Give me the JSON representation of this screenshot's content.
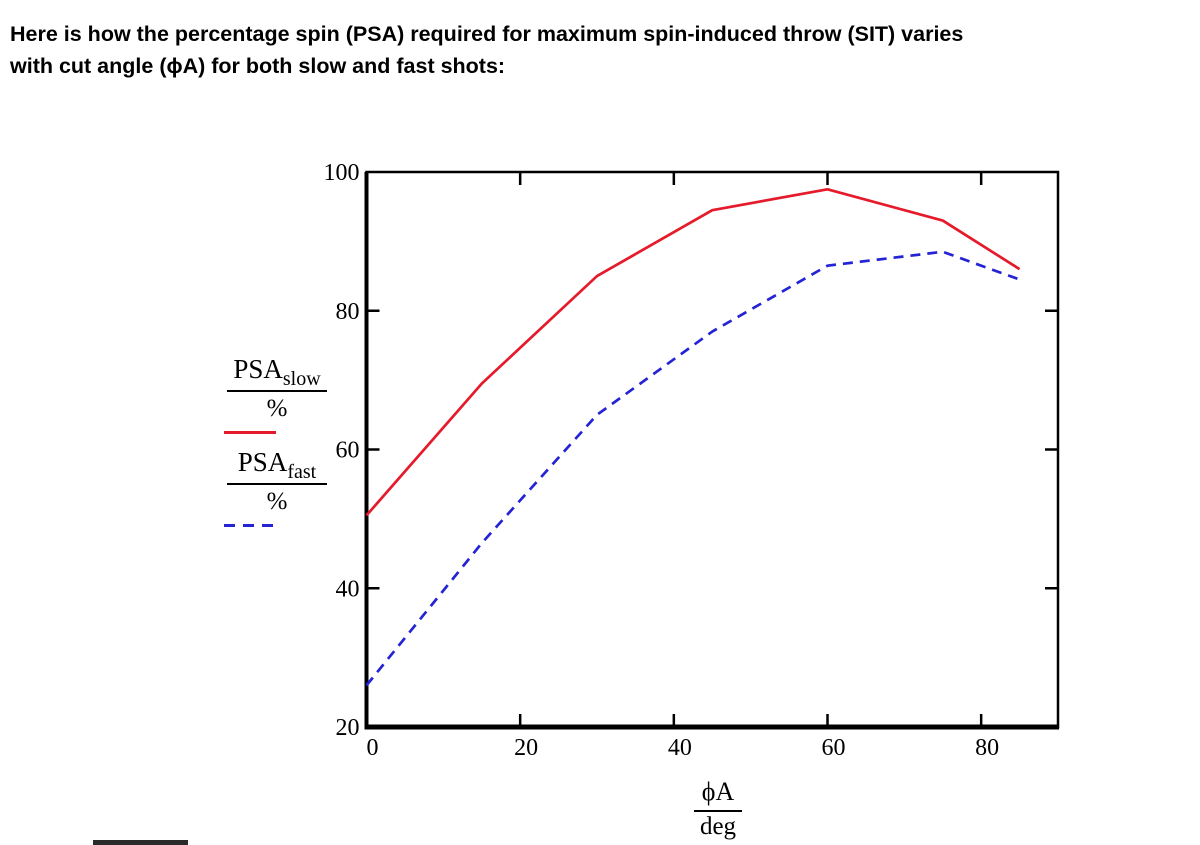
{
  "heading": {
    "lines": [
      "Here is how the percentage spin (PSA) required for maximum spin-induced throw (SIT) varies",
      "with cut angle (ϕA) for both slow and fast shots:"
    ]
  },
  "legend": {
    "entries": [
      {
        "main": "PSA",
        "sub": "slow",
        "denominator": "%",
        "line_color": "#e51a2b",
        "line_style": "solid"
      },
      {
        "main": "PSA",
        "sub": "fast",
        "denominator": "%",
        "line_color": "#2424d4",
        "line_style": "dashed"
      }
    ]
  },
  "chart_data": {
    "type": "line",
    "title": "",
    "x": [
      0,
      15,
      30,
      45,
      60,
      75,
      85
    ],
    "series": [
      {
        "name": "PSA_slow / %",
        "color": "#e51a2b",
        "style": "solid",
        "values": [
          50.5,
          69.5,
          85,
          94.5,
          97.5,
          93,
          86
        ]
      },
      {
        "name": "PSA_fast / %",
        "color": "#2424d4",
        "style": "dashed",
        "values": [
          26,
          46.5,
          65,
          77,
          86.5,
          88.5,
          84.5
        ]
      }
    ],
    "xlim": [
      0,
      90
    ],
    "ylim": [
      20,
      100
    ],
    "x_ticks": [
      0,
      20,
      40,
      60,
      80
    ],
    "y_ticks": [
      20,
      40,
      60,
      80,
      100
    ],
    "xlabel_numerator": "ϕA",
    "xlabel_denominator": "deg",
    "grid": false,
    "legend_position": "left",
    "frame": "box with inward ticks on all sides",
    "axis_color": "#000000"
  }
}
